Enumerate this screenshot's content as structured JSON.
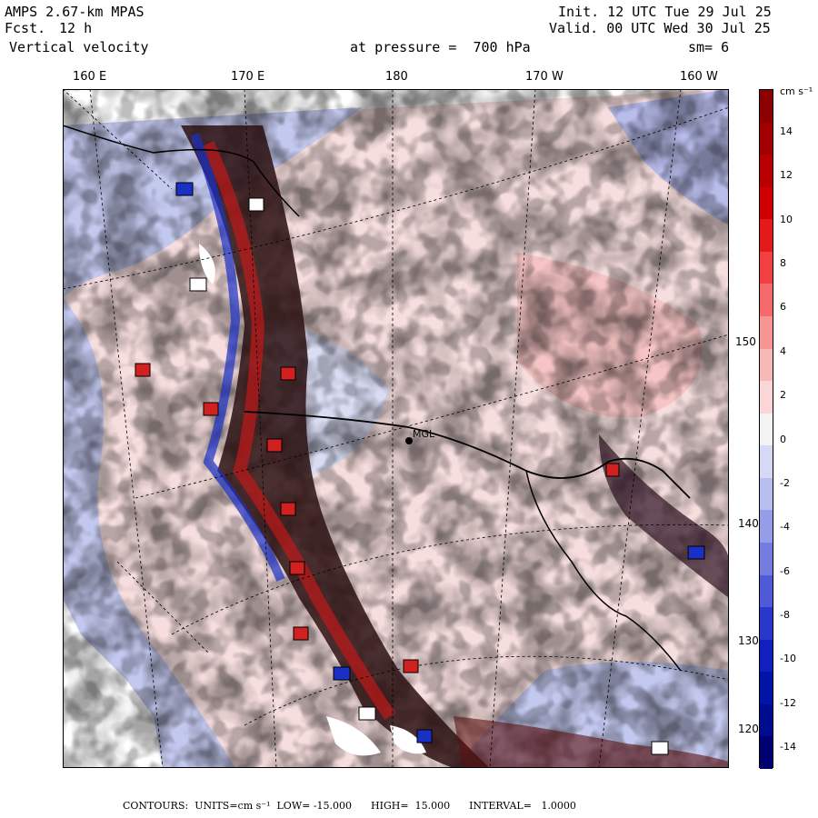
{
  "header": {
    "model": "AMPS 2.67-km MPAS",
    "forecast_label": "Fcst.",
    "forecast_hours": "12 h",
    "field": "Vertical velocity",
    "init": "Init. 12 UTC Tue 29 Jul 25",
    "valid": "Valid. 00 UTC Wed 30 Jul 25",
    "level": "at pressure =  700 hPa",
    "smoothing": "sm= 6"
  },
  "longitude_labels": [
    "160 E",
    "170 E",
    "180",
    "170 W",
    "160 W"
  ],
  "latitude_labels": [
    "150 W",
    "140 W",
    "130 W",
    "120 W"
  ],
  "station": "MGL",
  "colorbar": {
    "units": "cm s⁻¹",
    "tick_labels": [
      "14",
      "12",
      "10",
      "8",
      "6",
      "4",
      "2",
      "0",
      "-2",
      "-4",
      "-6",
      "-8",
      "-10",
      "-12",
      "-14"
    ],
    "colors": [
      "#8b0000",
      "#a00000",
      "#b80000",
      "#d00000",
      "#e41a1a",
      "#f04040",
      "#f46a6a",
      "#f79494",
      "#f9b8b8",
      "#fbd6d6",
      "#f3f3f3",
      "#d6d9f3",
      "#b8bef0",
      "#969de8",
      "#747ce0",
      "#5059d6",
      "#2a37cc",
      "#1020c0",
      "#0014a8",
      "#000c90",
      "#000070"
    ]
  },
  "footer": {
    "label": "CONTOURS:",
    "units": "UNITS=cm s⁻¹",
    "low": "LOW= -15.000",
    "high": "HIGH=  15.000",
    "interval": "INTERVAL=   1.0000"
  },
  "palette": {
    "land_gray": "#ffffff",
    "pos_light": "#f9c6c6",
    "neg_light": "#c9cdf0",
    "pos_dark": "#c00000",
    "neg_dark": "#1a2fc4"
  }
}
